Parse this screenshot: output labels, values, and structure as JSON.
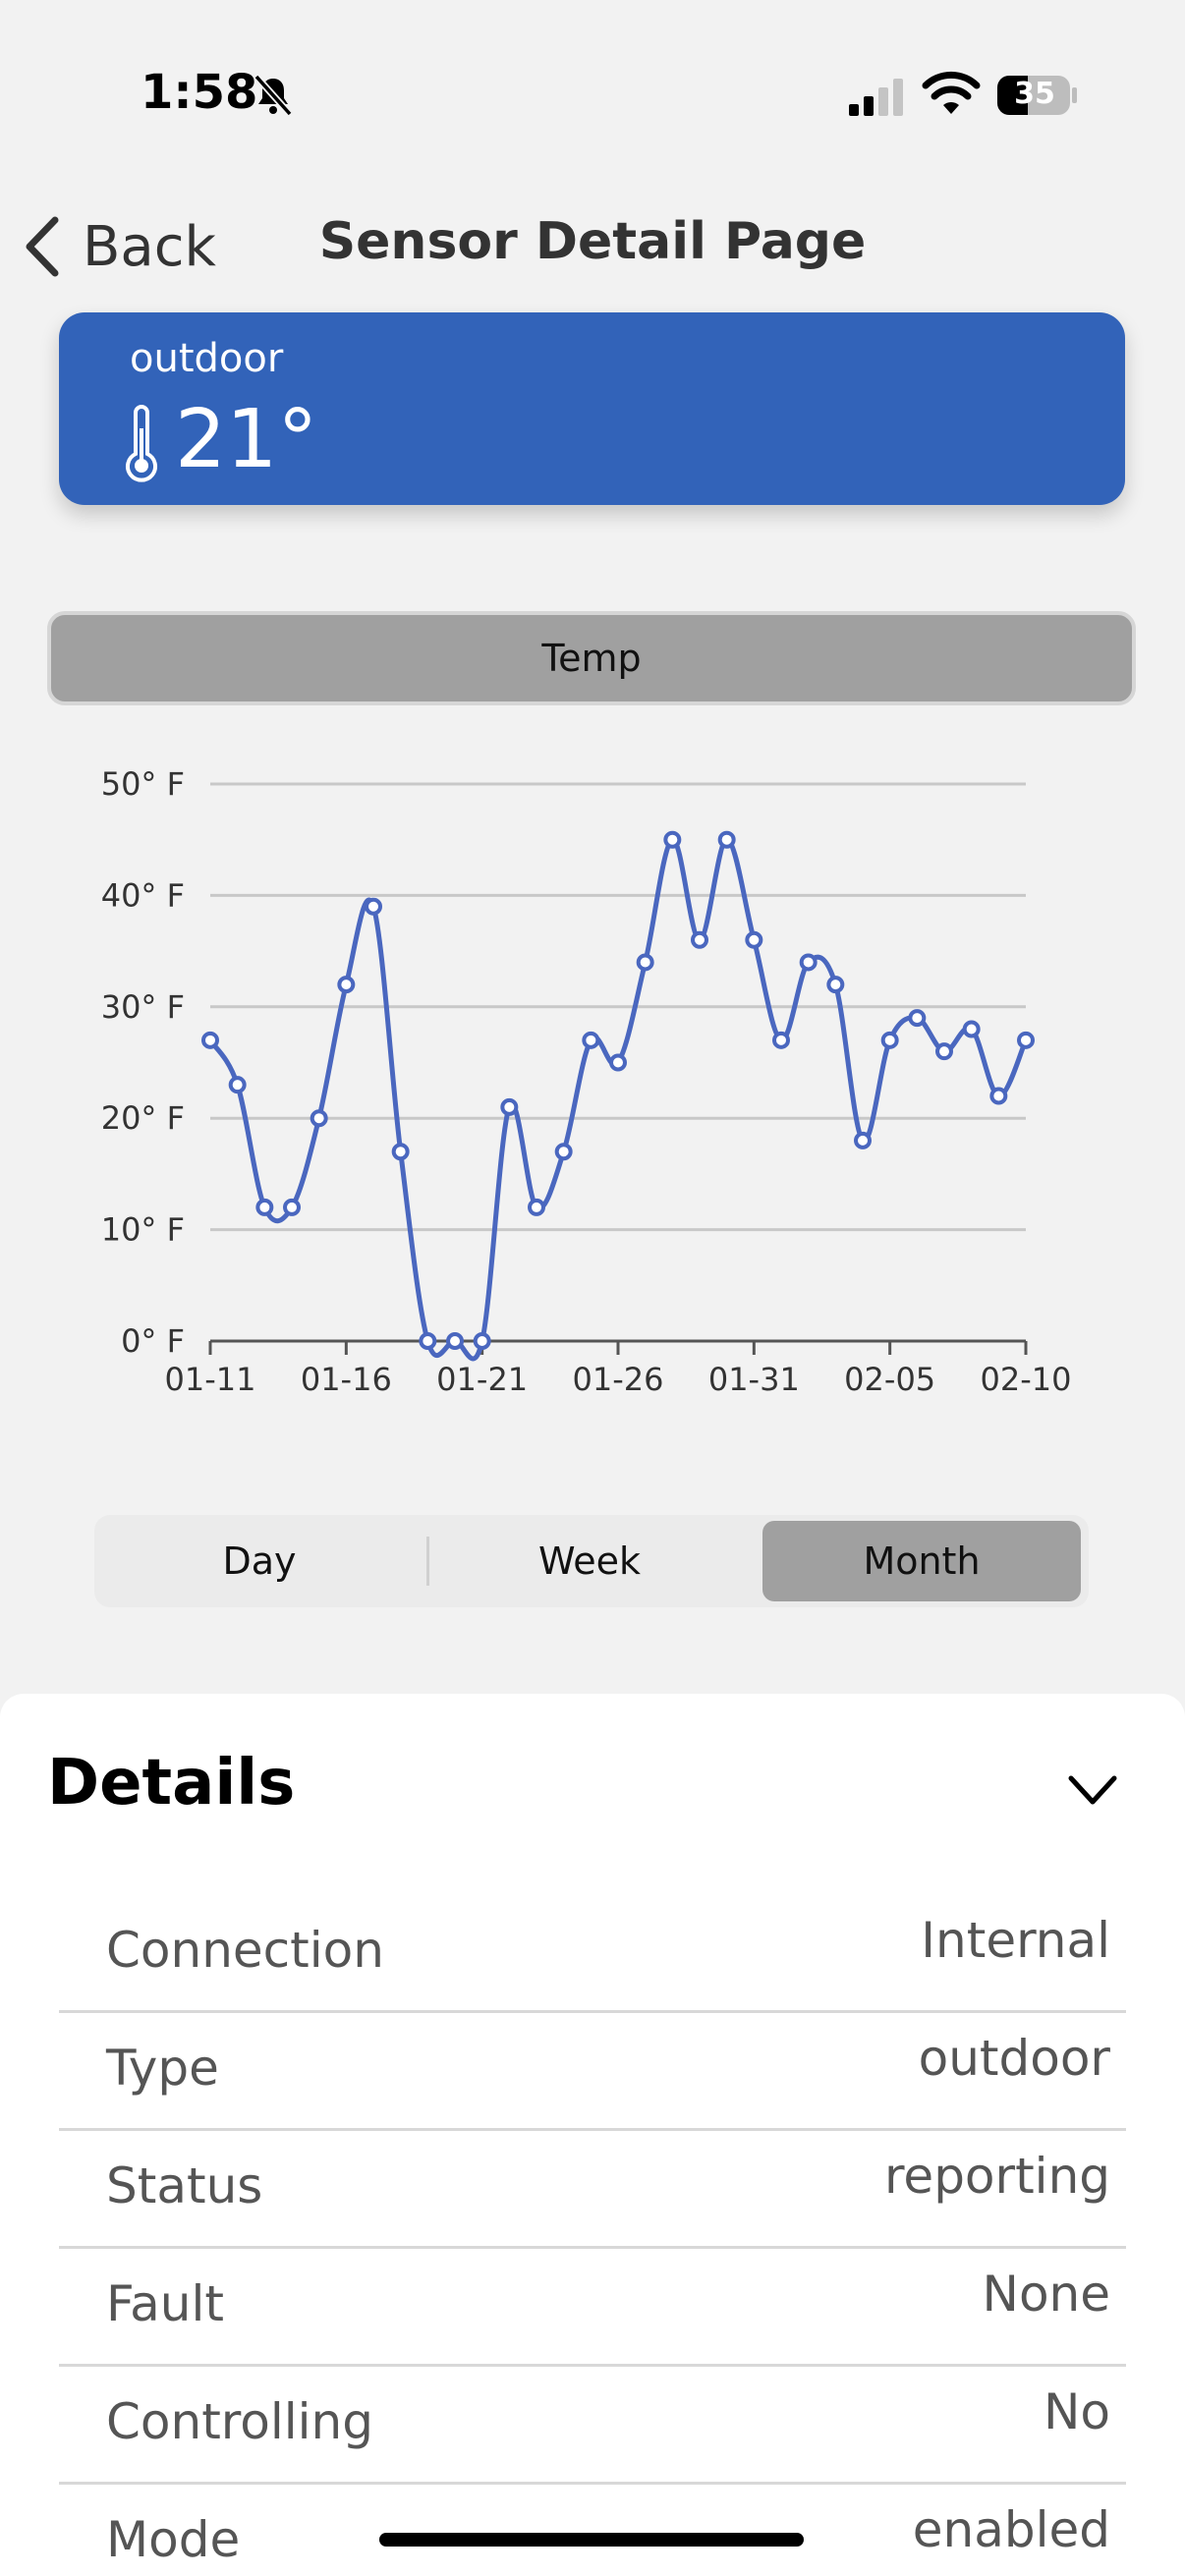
{
  "status_bar": {
    "time": "1:58",
    "battery": "35",
    "icons": [
      "bell-slash-icon",
      "cellular-signal-icon",
      "wifi-icon",
      "battery-icon"
    ]
  },
  "header": {
    "back_label": "Back",
    "title": "Sensor Detail Page"
  },
  "sensor": {
    "name": "outdoor",
    "temperature": "21°",
    "icon": "thermometer-icon",
    "card_color": "#3263b9"
  },
  "metric_button": {
    "label": "Temp"
  },
  "chart_data": {
    "type": "line",
    "x": [
      "01-11",
      "01-12",
      "01-13",
      "01-14",
      "01-15",
      "01-16",
      "01-17",
      "01-18",
      "01-19",
      "01-20",
      "01-21",
      "01-22",
      "01-23",
      "01-24",
      "01-25",
      "01-26",
      "01-27",
      "01-28",
      "01-29",
      "01-30",
      "01-31",
      "02-01",
      "02-02",
      "02-03",
      "02-04",
      "02-05",
      "02-06",
      "02-07",
      "02-08",
      "02-09",
      "02-10"
    ],
    "x_tick_labels": [
      "01-11",
      "01-16",
      "01-21",
      "01-26",
      "01-31",
      "02-05",
      "02-10"
    ],
    "y_tick_labels": [
      "0° F",
      "10° F",
      "20° F",
      "30° F",
      "40° F",
      "50° F"
    ],
    "ylim": [
      0,
      50
    ],
    "series": [
      {
        "values": [
          27,
          23,
          12,
          12,
          20,
          32,
          39,
          17,
          0,
          0,
          0,
          21,
          12,
          17,
          27,
          25,
          34,
          45,
          36,
          45,
          36,
          27,
          34,
          32,
          18,
          27,
          29,
          26,
          28,
          22,
          27
        ],
        "color": "#4a67bf"
      }
    ],
    "grid": true
  },
  "range_selector": {
    "options": [
      "Day",
      "Week",
      "Month"
    ],
    "selected": "Month"
  },
  "details": {
    "title": "Details",
    "rows": [
      {
        "label": "Connection",
        "value": "Internal"
      },
      {
        "label": "Type",
        "value": "outdoor"
      },
      {
        "label": "Status",
        "value": "reporting"
      },
      {
        "label": "Fault",
        "value": "None"
      },
      {
        "label": "Controlling",
        "value": "No"
      },
      {
        "label": "Mode",
        "value": "enabled"
      }
    ]
  }
}
